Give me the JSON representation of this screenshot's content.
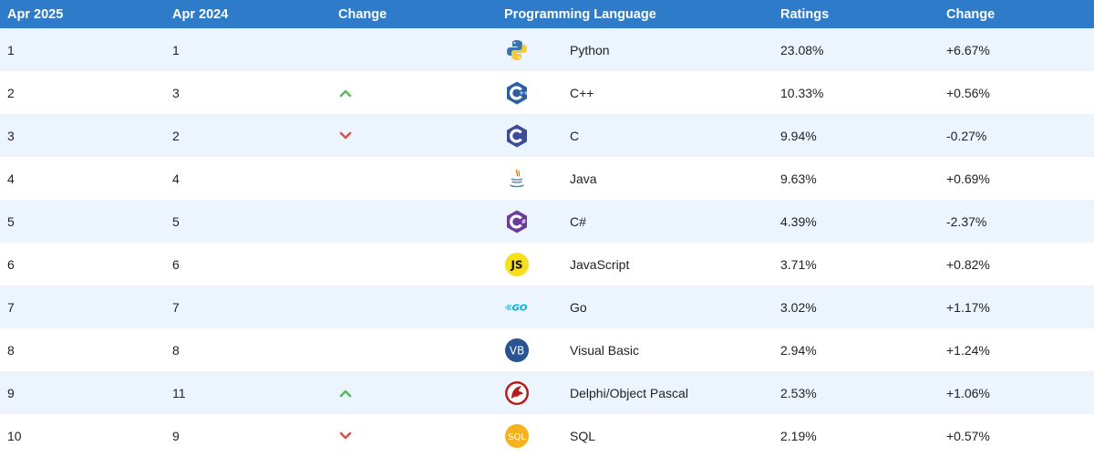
{
  "header": {
    "rank_2025": "Apr 2025",
    "rank_2024": "Apr 2024",
    "change": "Change",
    "language": "Programming Language",
    "ratings": "Ratings",
    "rating_change": "Change"
  },
  "colors": {
    "header_bg": "#2e7bc9",
    "row_alt_bg": "#ecf5fd",
    "up_arrow": "#5cb85c",
    "down_arrow": "#d9534f"
  },
  "rows": [
    {
      "rank_2025": "1",
      "rank_2024": "1",
      "trend": "none",
      "icon": "python-logo-icon",
      "language": "Python",
      "rating": "23.08%",
      "change": "+6.67%"
    },
    {
      "rank_2025": "2",
      "rank_2024": "3",
      "trend": "up",
      "icon": "cpp-logo-icon",
      "language": "C++",
      "rating": "10.33%",
      "change": "+0.56%"
    },
    {
      "rank_2025": "3",
      "rank_2024": "2",
      "trend": "down",
      "icon": "c-logo-icon",
      "language": "C",
      "rating": "9.94%",
      "change": "-0.27%"
    },
    {
      "rank_2025": "4",
      "rank_2024": "4",
      "trend": "none",
      "icon": "java-logo-icon",
      "language": "Java",
      "rating": "9.63%",
      "change": "+0.69%"
    },
    {
      "rank_2025": "5",
      "rank_2024": "5",
      "trend": "none",
      "icon": "csharp-logo-icon",
      "language": "C#",
      "rating": "4.39%",
      "change": "-2.37%"
    },
    {
      "rank_2025": "6",
      "rank_2024": "6",
      "trend": "none",
      "icon": "javascript-logo-icon",
      "icon_text": "JS",
      "language": "JavaScript",
      "rating": "3.71%",
      "change": "+0.82%"
    },
    {
      "rank_2025": "7",
      "rank_2024": "7",
      "trend": "none",
      "icon": "go-logo-icon",
      "icon_text": "GO",
      "language": "Go",
      "rating": "3.02%",
      "change": "+1.17%"
    },
    {
      "rank_2025": "8",
      "rank_2024": "8",
      "trend": "none",
      "icon": "visual-basic-logo-icon",
      "icon_text": "VB",
      "language": "Visual Basic",
      "rating": "2.94%",
      "change": "+1.24%"
    },
    {
      "rank_2025": "9",
      "rank_2024": "11",
      "trend": "up",
      "icon": "delphi-logo-icon",
      "language": "Delphi/Object Pascal",
      "rating": "2.53%",
      "change": "+1.06%"
    },
    {
      "rank_2025": "10",
      "rank_2024": "9",
      "trend": "down",
      "icon": "sql-logo-icon",
      "icon_text": "SQL",
      "language": "SQL",
      "rating": "2.19%",
      "change": "+0.57%"
    }
  ]
}
